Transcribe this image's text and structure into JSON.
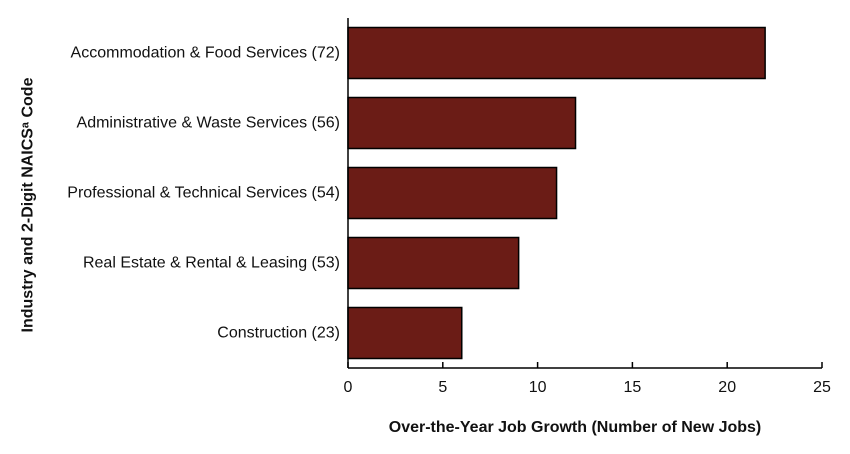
{
  "chart_data": {
    "type": "bar",
    "orientation": "horizontal",
    "title": "",
    "xlabel": "Over-the-Year Job Growth (Number of New Jobs)",
    "ylabel": "Industry and 2-Digit NAICSᵃ Code",
    "categories": [
      "Accommodation & Food Services (72)",
      "Administrative & Waste Services (56)",
      "Professional & Technical Services (54)",
      "Real Estate & Rental & Leasing (53)",
      "Construction (23)"
    ],
    "values": [
      22,
      12,
      11,
      9,
      6
    ],
    "xlim": [
      0,
      25
    ],
    "xticks": [
      "0",
      "5",
      "10",
      "15",
      "20",
      "25"
    ],
    "grid": false,
    "legend": "none",
    "colors": {
      "bar": "#6b1c16",
      "bar_edge": "#000000",
      "axis": "#000000"
    }
  }
}
